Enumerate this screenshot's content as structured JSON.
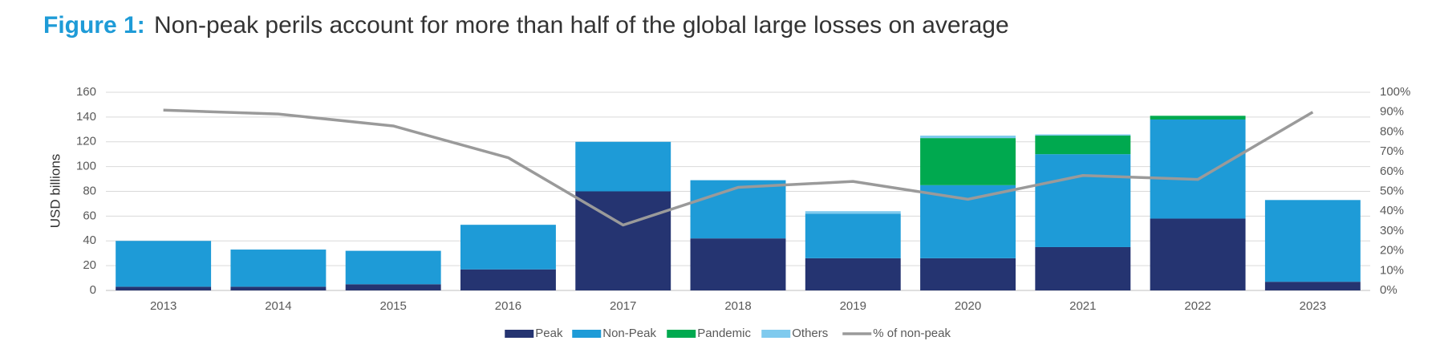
{
  "chart_data": {
    "type": "bar",
    "title_label": "Figure 1:",
    "title": "Non-peak perils account for more than half of the global large losses on average",
    "y_label": "USD billions",
    "categories": [
      "2013",
      "2014",
      "2015",
      "2016",
      "2017",
      "2018",
      "2019",
      "2020",
      "2021",
      "2022",
      "2023"
    ],
    "series": [
      {
        "name": "Peak",
        "color": "#253471",
        "values": [
          3,
          3,
          5,
          17,
          80,
          42,
          26,
          26,
          35,
          58,
          7
        ]
      },
      {
        "name": "Non-Peak",
        "color": "#1e9bd7",
        "values": [
          37,
          30,
          27,
          36,
          40,
          47,
          36,
          59,
          75,
          80,
          66
        ]
      },
      {
        "name": "Pandemic",
        "color": "#00a94f",
        "values": [
          null,
          null,
          null,
          null,
          null,
          null,
          null,
          38,
          15,
          3,
          null
        ]
      },
      {
        "name": "Others",
        "color": "#7fcaee",
        "values": [
          null,
          null,
          null,
          null,
          null,
          null,
          2,
          2,
          1,
          null,
          null
        ]
      },
      {
        "name": "% of non-peak",
        "color": "#9a9a9a",
        "type": "line",
        "axis": "y2",
        "values": [
          91,
          89,
          83,
          67,
          33,
          52,
          55,
          46,
          58,
          56,
          90
        ]
      }
    ],
    "ylim": [
      0,
      160
    ],
    "yticks": [
      0,
      20,
      40,
      60,
      80,
      100,
      120,
      140,
      160
    ],
    "y2lim": [
      0,
      100
    ],
    "y2ticks": [
      {
        "value": 0,
        "label": "0%"
      },
      {
        "value": 10,
        "label": "10%"
      },
      {
        "value": 20,
        "label": "20%"
      },
      {
        "value": 30,
        "label": "30%"
      },
      {
        "value": 40,
        "label": "40%"
      },
      {
        "value": 50,
        "label": "50%"
      },
      {
        "value": 60,
        "label": "60%"
      },
      {
        "value": 70,
        "label": "70%"
      },
      {
        "value": 80,
        "label": "80%"
      },
      {
        "value": 90,
        "label": "90%"
      },
      {
        "value": 100,
        "label": "100%"
      }
    ],
    "grid": true
  }
}
